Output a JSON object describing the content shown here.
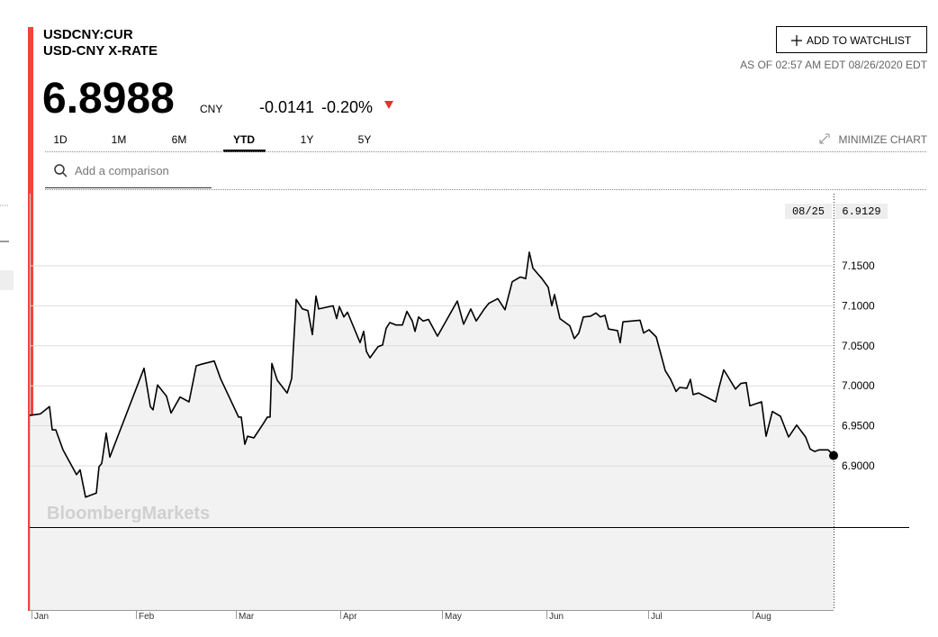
{
  "header": {
    "ticker": "USDCNY:CUR",
    "name": "USD-CNY X-RATE",
    "price": "6.8988",
    "currency": "CNY",
    "change": "-0.0141",
    "change_pct": "-0.20%"
  },
  "actions": {
    "watchlist": "ADD TO WATCHLIST",
    "as_of": "AS OF 02:57 AM EDT 08/26/2020 EDT",
    "minimize": "MINIMIZE CHART",
    "comparison": "Add a comparison"
  },
  "tabs": [
    "1D",
    "1M",
    "6M",
    "YTD",
    "1Y",
    "5Y"
  ],
  "watermark": "BloombergMarkets",
  "chart_data": {
    "type": "line",
    "months": [
      "Jan",
      "Feb",
      "Mar",
      "Apr",
      "May",
      "Jun",
      "Jul",
      "Aug"
    ],
    "last_date": "08/25",
    "series": [
      {
        "name": "USDCNY",
        "color": "#000000",
        "values": [
          6.963,
          6.965,
          6.974,
          6.945,
          6.945,
          6.92,
          6.889,
          6.895,
          6.861,
          6.866,
          6.899,
          6.903,
          6.941,
          6.911,
          7.022,
          6.974,
          6.97,
          7.001,
          6.987,
          6.966,
          6.986,
          6.98,
          7.025,
          7.027,
          7.031,
          7.009,
          6.961,
          6.961,
          6.927,
          6.937,
          6.935,
          6.952,
          6.961,
          6.961,
          7.028,
          7.007,
          6.991,
          7.009,
          7.108,
          7.096,
          7.094,
          7.064,
          7.112,
          7.096,
          7.1,
          7.084,
          7.099,
          7.086,
          7.092,
          7.054,
          7.068,
          7.043,
          7.035,
          7.049,
          7.051,
          7.072,
          7.079,
          7.076,
          7.076,
          7.093,
          7.081,
          7.068,
          7.086,
          7.081,
          7.083,
          7.062,
          7.106,
          7.077,
          7.096,
          7.081,
          7.096,
          7.103,
          7.109,
          7.095,
          7.13,
          7.136,
          7.134,
          7.167,
          7.147,
          7.134,
          7.123,
          7.1,
          7.114,
          7.084,
          7.075,
          7.059,
          7.066,
          7.086,
          7.087,
          7.091,
          7.086,
          7.088,
          7.071,
          7.069,
          7.054,
          7.08,
          7.082,
          7.066,
          7.07,
          7.061,
          7.019,
          7.008,
          6.993,
          6.998,
          6.997,
          7.008,
          6.989,
          6.991,
          6.98,
          6.999,
          7.02,
          7.011,
          6.996,
          7.003,
          7.004,
          6.975,
          6.98,
          6.937,
          6.968,
          6.962,
          6.936,
          6.951,
          6.936,
          6.921,
          6.918,
          6.92,
          6.92,
          6.9129
        ]
      }
    ],
    "ylim": [
      6.72,
      7.24
    ],
    "yticks": [
      {
        "value": 6.9,
        "label": "6.9000"
      },
      {
        "value": 6.95,
        "label": "6.9500"
      },
      {
        "value": 7.0,
        "label": "7.0000"
      },
      {
        "value": 7.05,
        "label": "7.0500"
      },
      {
        "value": 7.1,
        "label": "7.1000"
      },
      {
        "value": 7.15,
        "label": "7.1500"
      }
    ],
    "grid": true
  }
}
